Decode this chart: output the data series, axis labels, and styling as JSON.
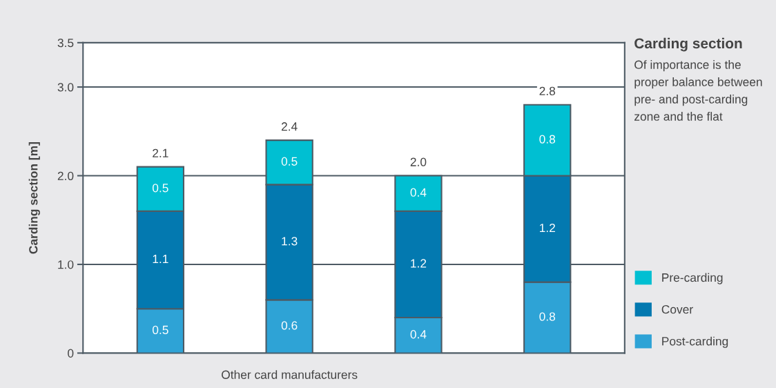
{
  "chart_data": {
    "type": "bar",
    "title": "Carding section",
    "subtitle": "Of importance is the proper balance between pre- and post-carding zone and the flat",
    "ylabel": "Carding section [m]",
    "categories": [
      null,
      null,
      null,
      null
    ],
    "annotations": [
      "Other card manufacturers"
    ],
    "stacked": true,
    "series": [
      {
        "name": "Post-carding",
        "color": "#2ea3d6",
        "values": [
          0.5,
          0.6,
          0.4,
          0.8
        ]
      },
      {
        "name": "Cover",
        "color": "#0379b0",
        "values": [
          1.1,
          1.3,
          1.2,
          1.2
        ]
      },
      {
        "name": "Pre-carding",
        "color": "#00bfd2",
        "values": [
          0.5,
          0.5,
          0.4,
          0.8
        ]
      }
    ],
    "data_labels": true,
    "totals": [
      "2.1",
      "2.4",
      "2.0",
      "2.8"
    ],
    "ylim": [
      0,
      3.5
    ],
    "yticks": [
      0,
      {
        "value": 1,
        "label": "1.0"
      },
      {
        "value": 2,
        "label": "2.0"
      },
      {
        "value": 3,
        "label": "3.0"
      },
      3.5
    ],
    "grid": "y",
    "legend": "right"
  }
}
